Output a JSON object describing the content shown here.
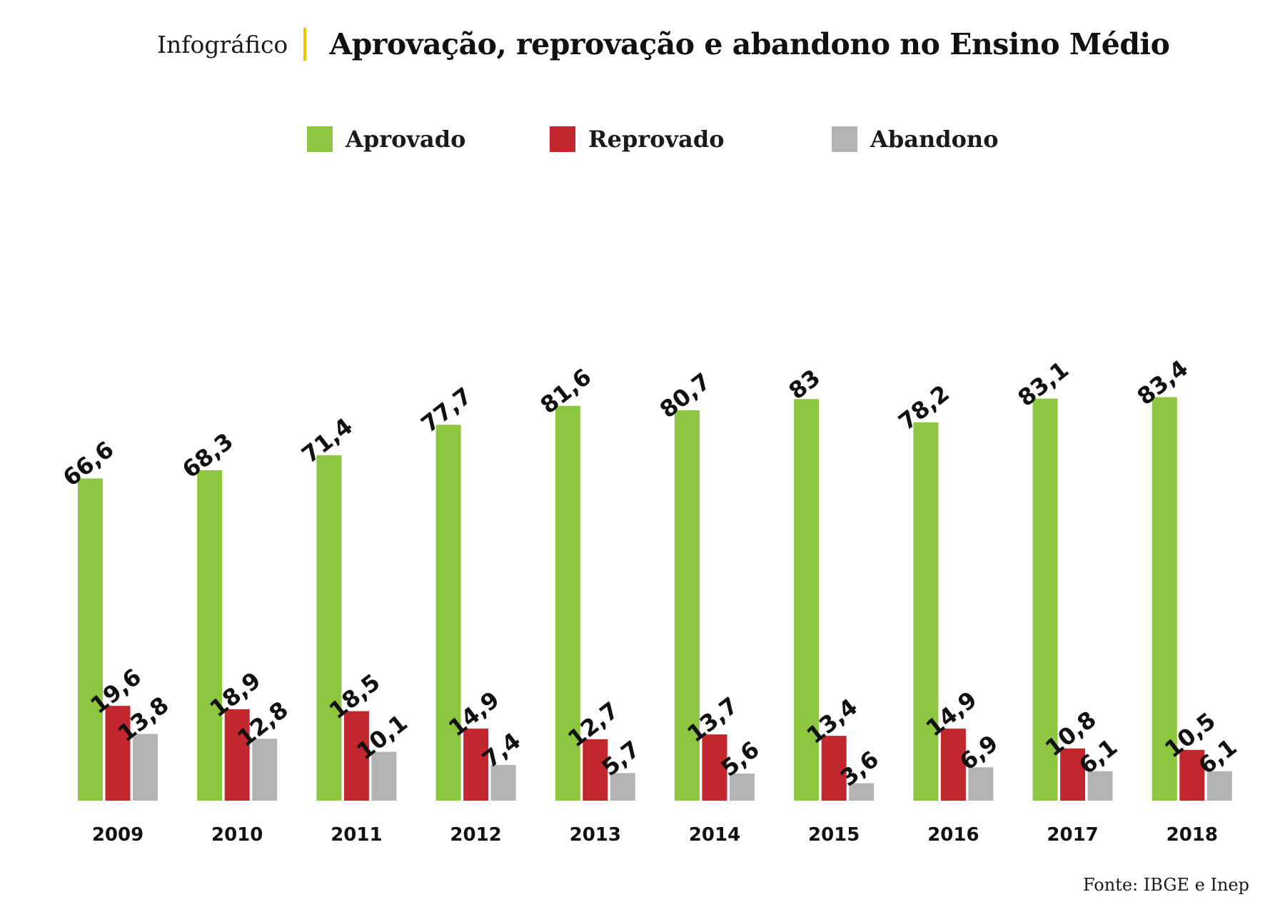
{
  "header": {
    "kicker": "Infográfico",
    "title": "Aprovação, reprovação e abandono no Ensino Médio"
  },
  "source": "Fonte: IBGE e Inep",
  "chart_data": {
    "type": "bar",
    "title": "Aprovação, reprovação e abandono no Ensino Médio",
    "categories": [
      "2009",
      "2010",
      "2011",
      "2012",
      "2013",
      "2014",
      "2015",
      "2016",
      "2017",
      "2018"
    ],
    "series": [
      {
        "name": "Aprovado",
        "color": "#8dc63f",
        "values": [
          66.6,
          68.3,
          71.4,
          77.7,
          81.6,
          80.7,
          83,
          78.2,
          83.1,
          83.4
        ],
        "labels": [
          "66,6",
          "68,3",
          "71,4",
          "77,7",
          "81,6",
          "80,7",
          "83",
          "78,2",
          "83,1",
          "83,4"
        ]
      },
      {
        "name": "Reprovado",
        "color": "#c1272d",
        "values": [
          19.6,
          18.9,
          18.5,
          14.9,
          12.7,
          13.7,
          13.4,
          14.9,
          10.8,
          10.5
        ],
        "labels": [
          "19,6",
          "18,9",
          "18,5",
          "14,9",
          "12,7",
          "13,7",
          "13,4",
          "14,9",
          "10,8",
          "10,5"
        ]
      },
      {
        "name": "Abandono",
        "color": "#b3b3b3",
        "values": [
          13.8,
          12.8,
          10.1,
          7.4,
          5.7,
          5.6,
          3.6,
          6.9,
          6.1,
          6.1
        ],
        "labels": [
          "13,8",
          "12,8",
          "10,1",
          "7,4",
          "5,7",
          "5,6",
          "3,6",
          "6,9",
          "6,1",
          "6,1"
        ]
      }
    ],
    "ylim": [
      0,
      100
    ],
    "grid": false,
    "legend": "top-center"
  }
}
